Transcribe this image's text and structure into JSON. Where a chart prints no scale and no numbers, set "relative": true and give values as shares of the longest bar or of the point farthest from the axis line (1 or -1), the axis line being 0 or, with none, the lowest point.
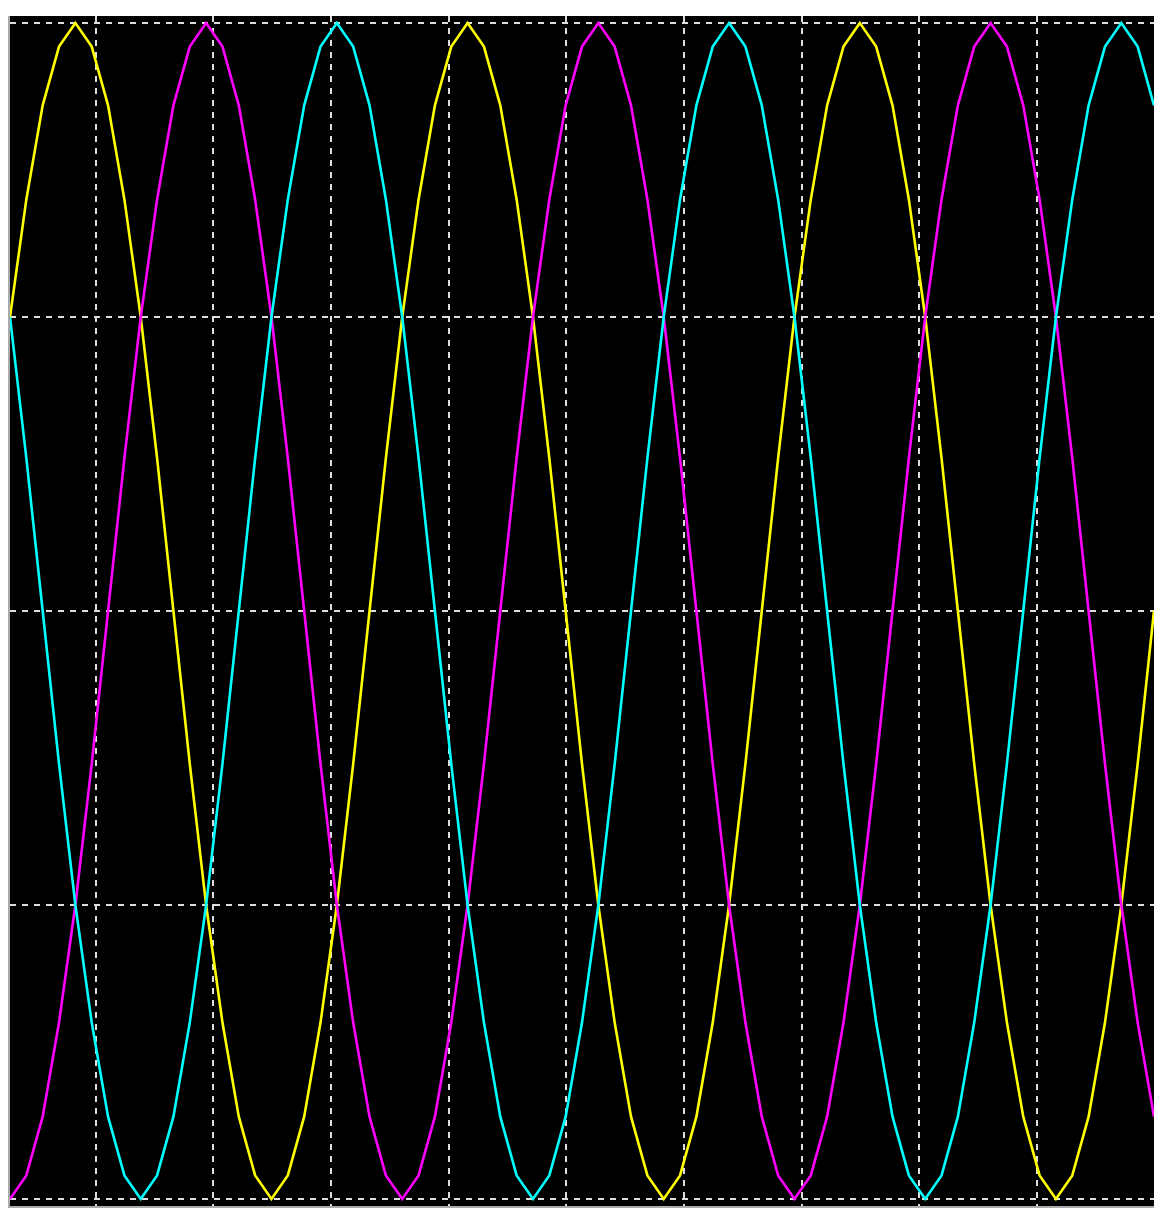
{
  "chart_data": {
    "type": "line",
    "relative": true,
    "grid": true,
    "marker": "none",
    "line_style": "solid",
    "categories": [
      null,
      null,
      null,
      null,
      null,
      null,
      null,
      null,
      null,
      null,
      null,
      null,
      null,
      null,
      null,
      null,
      null,
      null,
      null,
      null,
      null,
      null,
      null,
      null,
      null,
      null,
      null,
      null,
      null,
      null,
      null,
      null,
      null,
      null,
      null,
      null,
      null,
      null,
      null,
      null,
      null,
      null,
      null,
      null,
      null,
      null,
      null,
      null,
      null,
      null,
      null,
      null,
      null,
      null,
      null,
      null,
      null,
      null,
      null,
      null,
      null,
      null,
      null,
      null,
      null,
      null,
      null,
      null,
      null,
      null,
      null
    ],
    "series": [
      {
        "color": "#ffff00",
        "values": [
          0.75,
          0.85,
          0.93,
          0.98,
          1,
          0.98,
          0.93,
          0.85,
          0.75,
          0.63,
          0.5,
          0.37,
          0.25,
          0.15,
          0.07,
          0.02,
          0,
          0.02,
          0.07,
          0.15,
          0.25,
          0.37,
          0.5,
          0.63,
          0.75,
          0.85,
          0.93,
          0.98,
          1,
          0.98,
          0.93,
          0.85,
          0.75,
          0.63,
          0.5,
          0.37,
          0.25,
          0.15,
          0.07,
          0.02,
          0,
          0.02,
          0.07,
          0.15,
          0.25,
          0.37,
          0.5,
          0.63,
          0.75,
          0.85,
          0.93,
          0.98,
          1,
          0.98,
          0.93,
          0.85,
          0.75,
          0.63,
          0.5,
          0.37,
          0.25,
          0.15,
          0.07,
          0.02,
          0,
          0.02,
          0.07,
          0.15,
          0.25,
          0.37,
          0.5
        ]
      },
      {
        "color": "#ff00ff",
        "values": [
          0,
          0.02,
          0.07,
          0.15,
          0.25,
          0.37,
          0.5,
          0.63,
          0.75,
          0.85,
          0.93,
          0.98,
          1,
          0.98,
          0.93,
          0.85,
          0.75,
          0.63,
          0.5,
          0.37,
          0.25,
          0.15,
          0.07,
          0.02,
          0,
          0.02,
          0.07,
          0.15,
          0.25,
          0.37,
          0.5,
          0.63,
          0.75,
          0.85,
          0.93,
          0.98,
          1,
          0.98,
          0.93,
          0.85,
          0.75,
          0.63,
          0.5,
          0.37,
          0.25,
          0.15,
          0.07,
          0.02,
          0,
          0.02,
          0.07,
          0.15,
          0.25,
          0.37,
          0.5,
          0.63,
          0.75,
          0.85,
          0.93,
          0.98,
          1,
          0.98,
          0.93,
          0.85,
          0.75,
          0.63,
          0.5,
          0.37,
          0.25,
          0.15,
          0.07
        ]
      },
      {
        "color": "#00ffff",
        "values": [
          0.75,
          0.63,
          0.5,
          0.37,
          0.25,
          0.15,
          0.07,
          0.02,
          0,
          0.02,
          0.07,
          0.15,
          0.25,
          0.37,
          0.5,
          0.63,
          0.75,
          0.85,
          0.93,
          0.98,
          1,
          0.98,
          0.93,
          0.85,
          0.75,
          0.63,
          0.5,
          0.37,
          0.25,
          0.15,
          0.07,
          0.02,
          0,
          0.02,
          0.07,
          0.15,
          0.25,
          0.37,
          0.5,
          0.63,
          0.75,
          0.85,
          0.93,
          0.98,
          1,
          0.98,
          0.93,
          0.85,
          0.75,
          0.63,
          0.5,
          0.37,
          0.25,
          0.15,
          0.07,
          0.02,
          0,
          0.02,
          0.07,
          0.15,
          0.25,
          0.37,
          0.5,
          0.63,
          0.75,
          0.85,
          0.93,
          0.98,
          1,
          0.98,
          0.93
        ]
      }
    ]
  }
}
